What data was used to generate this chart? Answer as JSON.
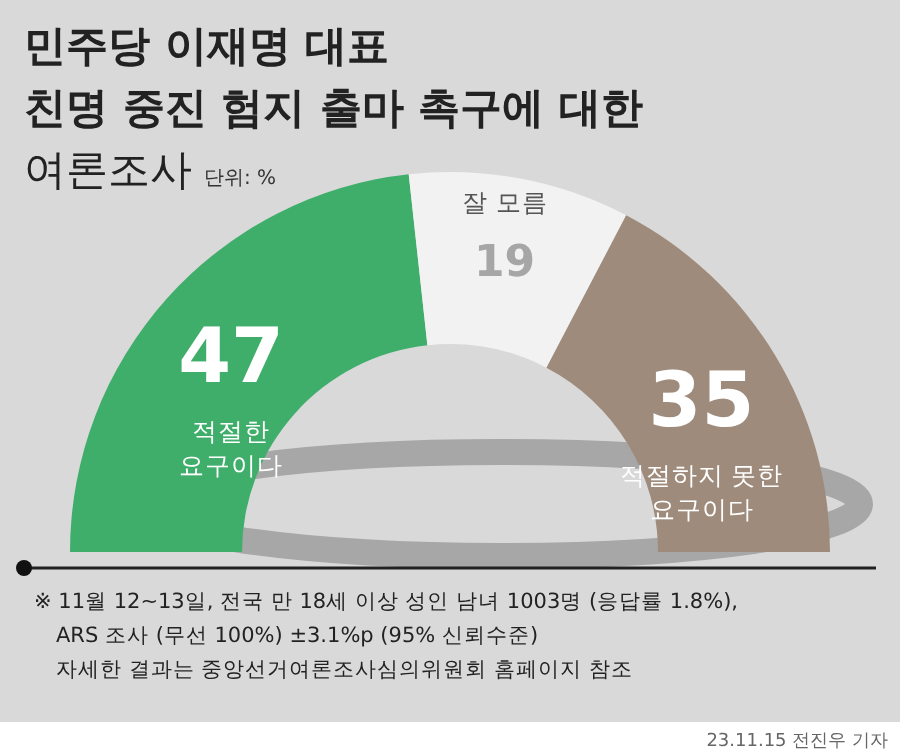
{
  "chart_data": {
    "type": "donut",
    "title": "민주당 이재명 대표\n친명 중진 험지 출마 촉구에 대한\n여론조사",
    "subtitle": "단위: %",
    "categories": [
      "적절한 요구이다",
      "잘 모름",
      "적절하지 못한 요구이다"
    ],
    "values": [
      47,
      19,
      35
    ],
    "colors": [
      "#3fae6b",
      "#f2f2f2",
      "#9e8b7c"
    ],
    "data_labels": true,
    "annotations": [
      "※ 11월 12~13일, 전국 만 18세 이상 성인 남녀 1003명 (응답률 1.8%),",
      "ARS 조사 (무선 100%) ±3.1%p (95% 신뢰수준)",
      "자세한 결과는 중앙선거여론조사심의위원회 홈페이지 참조",
      "23.11.15 전진우 기자"
    ]
  }
}
